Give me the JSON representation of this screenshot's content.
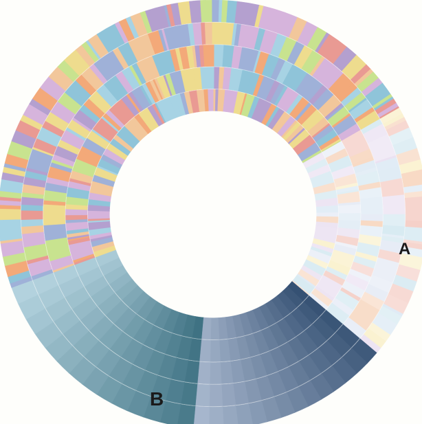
{
  "figure": {
    "background": "#fefefb",
    "ring_count": 5,
    "labels": {
      "A": "A",
      "B": "B"
    }
  },
  "regions": [
    {
      "id": "teal-block",
      "from": 185,
      "to": 250,
      "colors": [
        "#3f7283",
        "#c5e1ec"
      ],
      "fade": 0.0
    },
    {
      "id": "navy-block-B",
      "from": 130,
      "to": 185,
      "colors": [
        "#355173",
        "#b7c5da"
      ],
      "fade": 0.0
    },
    {
      "id": "pastel-block-A",
      "from": 60,
      "to": 130,
      "palette": "pastel-light",
      "fade": 0.55
    },
    {
      "id": "multicolor-rest",
      "from": 250,
      "to": 420,
      "palette": "vivid",
      "fade": 0.0
    }
  ],
  "palettes": {
    "vivid": [
      "#f3a979",
      "#b4a0cf",
      "#c8e38f",
      "#a7d3e4",
      "#e99a93",
      "#9fb1d8",
      "#f2c79b",
      "#8fc4d9",
      "#d6b4dc",
      "#eedc8e"
    ],
    "pastel-light": [
      "#f6d2b8",
      "#d9e7f3",
      "#e7dcef",
      "#f9eec3",
      "#cfe6ef",
      "#f3c7bd",
      "#e2e8f4"
    ]
  }
}
